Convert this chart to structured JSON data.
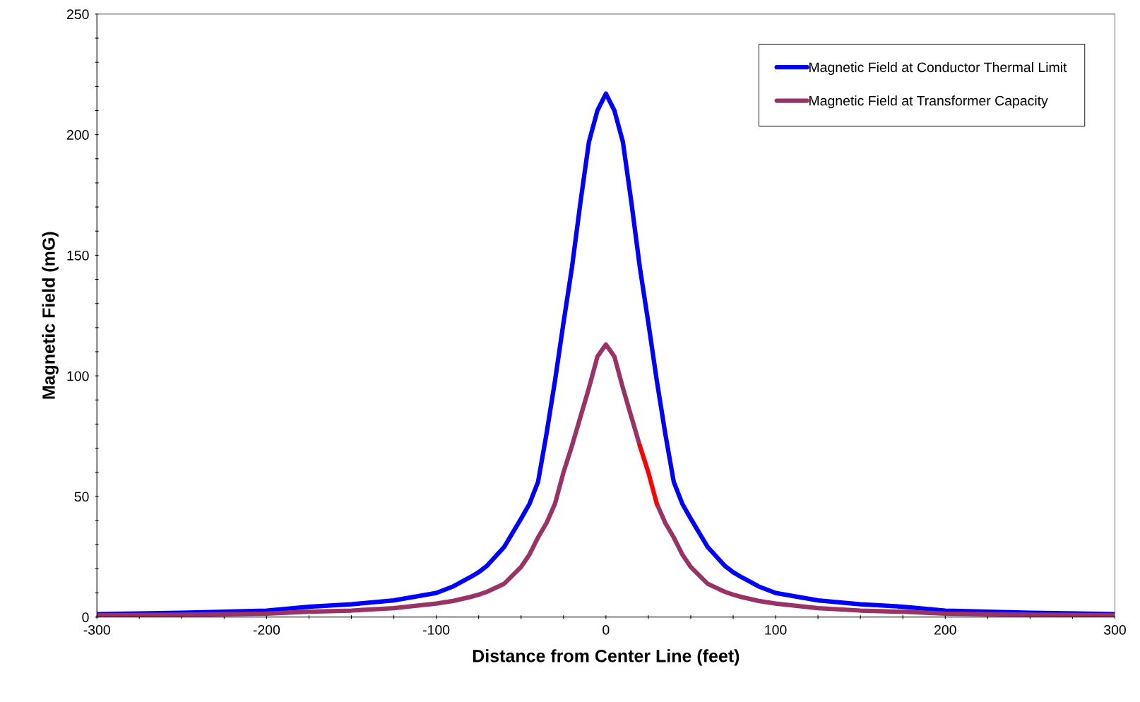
{
  "chart_data": {
    "type": "line",
    "xlabel": "Distance from Center Line (feet)",
    "ylabel": "Magnetic Field (mG)",
    "xlim": [
      -300,
      300
    ],
    "ylim": [
      0,
      250
    ],
    "xticks": [
      -300,
      {
        "value": -275,
        "label": null
      },
      {
        "value": -250,
        "label": null
      },
      {
        "value": -225,
        "label": null
      },
      -200,
      {
        "value": -175,
        "label": null
      },
      {
        "value": -150,
        "label": null
      },
      {
        "value": -125,
        "label": null
      },
      -100,
      {
        "value": -75,
        "label": null
      },
      {
        "value": -50,
        "label": null
      },
      {
        "value": -25,
        "label": null
      },
      0,
      {
        "value": 25,
        "label": null
      },
      {
        "value": 50,
        "label": null
      },
      {
        "value": 75,
        "label": null
      },
      100,
      {
        "value": 125,
        "label": null
      },
      {
        "value": 150,
        "label": null
      },
      {
        "value": 175,
        "label": null
      },
      200,
      {
        "value": 225,
        "label": null
      },
      {
        "value": 250,
        "label": null
      },
      {
        "value": 275,
        "label": null
      },
      300
    ],
    "yticks": [
      0,
      {
        "value": 10,
        "label": null
      },
      {
        "value": 20,
        "label": null
      },
      {
        "value": 30,
        "label": null
      },
      {
        "value": 40,
        "label": null
      },
      50,
      {
        "value": 60,
        "label": null
      },
      {
        "value": 70,
        "label": null
      },
      {
        "value": 80,
        "label": null
      },
      {
        "value": 90,
        "label": null
      },
      100,
      {
        "value": 110,
        "label": null
      },
      {
        "value": 120,
        "label": null
      },
      {
        "value": 130,
        "label": null
      },
      {
        "value": 140,
        "label": null
      },
      150,
      {
        "value": 160,
        "label": null
      },
      {
        "value": 170,
        "label": null
      },
      {
        "value": 180,
        "label": null
      },
      {
        "value": 190,
        "label": null
      },
      200,
      {
        "value": 210,
        "label": null
      },
      {
        "value": 220,
        "label": null
      },
      {
        "value": 230,
        "label": null
      },
      {
        "value": 240,
        "label": null
      },
      250
    ],
    "grid": false,
    "legend": "top right",
    "marker": "none",
    "line_style": "solid",
    "series": [
      {
        "name": "Magnetic Field at Conductor Thermal Limit",
        "color": "#0000ff",
        "x": [
          -300,
          -250,
          -200,
          -175,
          -150,
          -125,
          -100,
          -90,
          -80,
          -75,
          -70,
          -60,
          -50,
          -45,
          -40,
          -35,
          -30,
          -25,
          -20,
          -15,
          -10,
          -5,
          0,
          5,
          10,
          15,
          20,
          25,
          30,
          35,
          40,
          45,
          50,
          60,
          70,
          75,
          80,
          90,
          100,
          125,
          150,
          175,
          200,
          250,
          300
        ],
        "values": [
          1.2,
          1.8,
          2.7,
          4.3,
          5.3,
          6.9,
          10,
          12.7,
          16.5,
          18.6,
          21.3,
          29,
          40.8,
          47,
          56,
          76,
          98,
          122,
          145,
          172,
          197,
          210,
          217,
          210,
          197,
          172,
          145,
          122,
          98,
          76,
          56,
          47,
          40.8,
          29,
          21.3,
          18.6,
          16.5,
          12.7,
          10,
          6.9,
          5.3,
          4.3,
          2.7,
          1.8,
          1.2
        ]
      },
      {
        "name": "Magnetic Field at Transformer Capacity",
        "color": "#993366",
        "x": [
          -300,
          -250,
          -200,
          -175,
          -150,
          -125,
          -100,
          -90,
          -80,
          -75,
          -70,
          -60,
          -50,
          -45,
          -40,
          -35,
          -30,
          -25,
          -20,
          -15,
          -10,
          -5,
          0,
          5,
          10,
          15,
          20,
          25,
          30,
          35,
          40,
          45,
          50,
          60,
          70,
          75,
          80,
          90,
          100,
          125,
          150,
          175,
          200,
          250,
          300
        ],
        "values": [
          0.7,
          1,
          1.4,
          2.2,
          2.7,
          3.7,
          5.6,
          6.7,
          8.3,
          9.3,
          10.5,
          13.8,
          20.8,
          26,
          33,
          39,
          47,
          60,
          71,
          83,
          95,
          108,
          113,
          108,
          95,
          83,
          71,
          null,
          47,
          39,
          33,
          26,
          20.8,
          13.8,
          10.5,
          9.3,
          8.3,
          6.7,
          5.6,
          3.7,
          2.7,
          2.2,
          1.4,
          1,
          0.7
        ]
      },
      {
        "color": "#ff0000",
        "x": [
          20,
          25,
          30
        ],
        "values": [
          71,
          60,
          47
        ]
      }
    ]
  }
}
